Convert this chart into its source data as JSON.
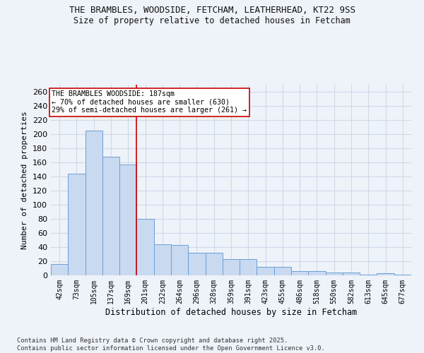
{
  "title1": "THE BRAMBLES, WOODSIDE, FETCHAM, LEATHERHEAD, KT22 9SS",
  "title2": "Size of property relative to detached houses in Fetcham",
  "xlabel": "Distribution of detached houses by size in Fetcham",
  "ylabel": "Number of detached properties",
  "categories": [
    "42sqm",
    "73sqm",
    "105sqm",
    "137sqm",
    "169sqm",
    "201sqm",
    "232sqm",
    "264sqm",
    "296sqm",
    "328sqm",
    "359sqm",
    "391sqm",
    "423sqm",
    "455sqm",
    "486sqm",
    "518sqm",
    "550sqm",
    "582sqm",
    "613sqm",
    "645sqm",
    "677sqm"
  ],
  "values": [
    16,
    144,
    205,
    168,
    157,
    80,
    44,
    43,
    32,
    32,
    23,
    23,
    12,
    12,
    6,
    6,
    4,
    4,
    1,
    3,
    1
  ],
  "bar_color": "#c9d9f0",
  "bar_edge_color": "#6a9fd8",
  "vline_x": 4.5,
  "vline_color": "#cc0000",
  "annotation_text": "THE BRAMBLES WOODSIDE: 187sqm\n← 70% of detached houses are smaller (630)\n29% of semi-detached houses are larger (261) →",
  "annotation_box_color": "#ffffff",
  "annotation_box_edge": "#cc0000",
  "ylim": [
    0,
    270
  ],
  "yticks": [
    0,
    20,
    40,
    60,
    80,
    100,
    120,
    140,
    160,
    180,
    200,
    220,
    240,
    260
  ],
  "grid_color": "#d0d8e8",
  "footer": "Contains HM Land Registry data © Crown copyright and database right 2025.\nContains public sector information licensed under the Open Government Licence v3.0.",
  "bg_color": "#eef2f9"
}
